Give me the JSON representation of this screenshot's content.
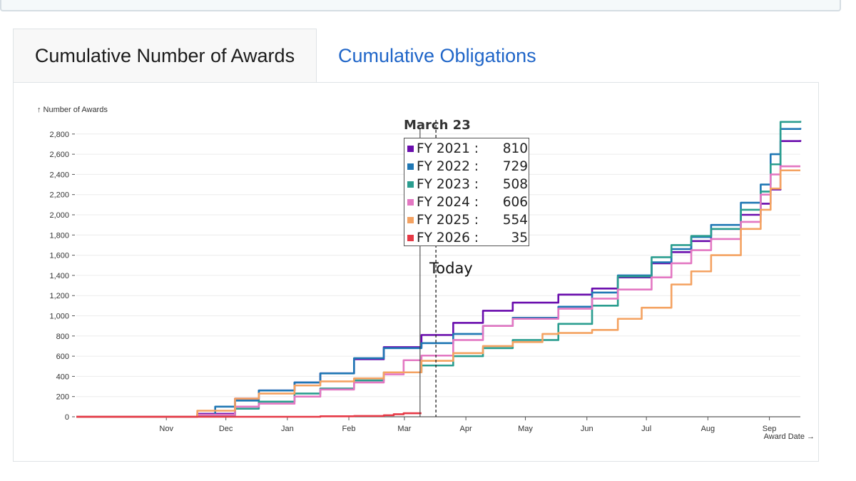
{
  "tabs": {
    "active": "Cumulative Number of Awards",
    "inactive": "Cumulative Obligations"
  },
  "tooltip": {
    "date": "March 23",
    "rows": [
      {
        "name": "FY 2021 :",
        "value": "810",
        "color": "#6a0dad"
      },
      {
        "name": "FY 2022 :",
        "value": "729",
        "color": "#1f77b4"
      },
      {
        "name": "FY 2023 :",
        "value": "508",
        "color": "#2a9d8f"
      },
      {
        "name": "FY 2024 :",
        "value": "606",
        "color": "#e377c2"
      },
      {
        "name": "FY 2025 :",
        "value": "554",
        "color": "#f4a261"
      },
      {
        "name": "FY 2026 :",
        "value": "35",
        "color": "#e63946"
      }
    ]
  },
  "today_label": "Today",
  "chart_data": {
    "type": "line",
    "ylabel": "↑ Number of Awards",
    "xlabel": "Award Date →",
    "ylim": [
      0,
      2900
    ],
    "yticks": [
      0,
      200,
      400,
      600,
      800,
      1000,
      1200,
      1400,
      1600,
      1800,
      2000,
      2200,
      2400,
      2600,
      2800
    ],
    "ytick_labels": [
      "0",
      "200",
      "400",
      "600",
      "800",
      "1,000",
      "1,200",
      "1,400",
      "1,600",
      "1,800",
      "2,000",
      "2,200",
      "2,400",
      "2,600",
      "2,800"
    ],
    "x_unit": "days since Oct 1",
    "xlim": [
      0,
      365
    ],
    "xticks": [
      {
        "label": "Nov",
        "x": 31
      },
      {
        "label": "Dec",
        "x": 61
      },
      {
        "label": "Jan",
        "x": 92
      },
      {
        "label": "Feb",
        "x": 123
      },
      {
        "label": "Mar",
        "x": 151
      },
      {
        "label": "Apr",
        "x": 182
      },
      {
        "label": "May",
        "x": 212
      },
      {
        "label": "Jun",
        "x": 243
      },
      {
        "label": "Jul",
        "x": 273
      },
      {
        "label": "Aug",
        "x": 304
      },
      {
        "label": "Sep",
        "x": 335
      }
    ],
    "hover_x": 174,
    "today_x": 182,
    "series": [
      {
        "name": "FY 2021",
        "color": "#6a0dad",
        "x": [
          0,
          40,
          61,
          80,
          92,
          110,
          123,
          140,
          155,
          174,
          190,
          205,
          220,
          243,
          260,
          273,
          290,
          300,
          310,
          320,
          335,
          345,
          350,
          355,
          365
        ],
        "y": [
          0,
          0,
          30,
          180,
          260,
          340,
          430,
          570,
          690,
          810,
          930,
          1050,
          1130,
          1210,
          1270,
          1380,
          1520,
          1630,
          1740,
          1860,
          2000,
          2110,
          2250,
          2730,
          2740
        ]
      },
      {
        "name": "FY 2022",
        "color": "#1f77b4",
        "x": [
          0,
          40,
          61,
          70,
          80,
          92,
          110,
          123,
          140,
          155,
          174,
          190,
          205,
          220,
          243,
          260,
          273,
          290,
          300,
          310,
          320,
          335,
          345,
          350,
          355,
          365
        ],
        "y": [
          0,
          0,
          20,
          100,
          160,
          260,
          340,
          430,
          580,
          680,
          729,
          820,
          900,
          980,
          1090,
          1230,
          1400,
          1530,
          1660,
          1780,
          1900,
          2120,
          2300,
          2600,
          2850,
          2860
        ]
      },
      {
        "name": "FY 2023",
        "color": "#2a9d8f",
        "x": [
          0,
          40,
          61,
          80,
          92,
          110,
          123,
          140,
          155,
          174,
          190,
          205,
          220,
          243,
          260,
          273,
          290,
          300,
          310,
          320,
          335,
          345,
          350,
          355,
          365
        ],
        "y": [
          0,
          0,
          15,
          80,
          150,
          230,
          280,
          360,
          440,
          508,
          600,
          680,
          760,
          920,
          1100,
          1390,
          1580,
          1700,
          1790,
          1860,
          2050,
          2230,
          2500,
          2920,
          2930
        ]
      },
      {
        "name": "FY 2024",
        "color": "#e377c2",
        "x": [
          0,
          40,
          61,
          80,
          92,
          110,
          123,
          140,
          155,
          165,
          174,
          190,
          205,
          220,
          243,
          260,
          273,
          290,
          300,
          310,
          320,
          335,
          345,
          350,
          355,
          365
        ],
        "y": [
          0,
          0,
          20,
          100,
          130,
          200,
          270,
          340,
          420,
          560,
          606,
          760,
          900,
          970,
          1070,
          1170,
          1260,
          1380,
          1520,
          1650,
          1760,
          1930,
          2200,
          2400,
          2480,
          2480
        ]
      },
      {
        "name": "FY 2025",
        "color": "#f4a261",
        "x": [
          0,
          35,
          61,
          80,
          92,
          110,
          123,
          140,
          155,
          174,
          190,
          205,
          220,
          235,
          243,
          260,
          273,
          285,
          300,
          310,
          320,
          335,
          345,
          350,
          355,
          365
        ],
        "y": [
          0,
          0,
          60,
          180,
          230,
          310,
          350,
          380,
          440,
          554,
          630,
          700,
          740,
          820,
          830,
          860,
          970,
          1080,
          1310,
          1440,
          1600,
          1860,
          2050,
          2260,
          2440,
          2440
        ]
      },
      {
        "name": "FY 2026",
        "color": "#e63946",
        "x": [
          0,
          90,
          123,
          140,
          155,
          160,
          165,
          174
        ],
        "y": [
          0,
          0,
          5,
          8,
          15,
          25,
          35,
          35
        ]
      }
    ]
  }
}
